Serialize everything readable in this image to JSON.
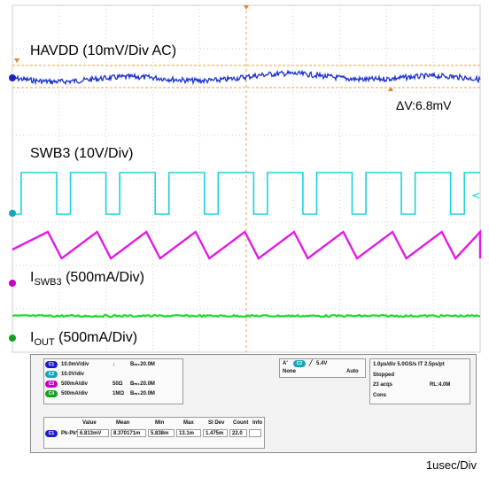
{
  "labels": {
    "havdd": "HAVDD (10mV/Div  AC)",
    "delta": "ΔV:6.8mV",
    "swb3": "SWB3 (10V/Div)",
    "iswb3_main": "I",
    "iswb3_sub": "SWB3",
    "iswb3_rest": " (500mA/Div)",
    "iout_main": "I",
    "iout_sub": "OUT",
    "iout_rest": " (500mA/Div)",
    "timebase": "1usec/Div"
  },
  "channels": [
    {
      "id": "C1",
      "scale": "10.0mV/div",
      "coupling": "↓",
      "bw": "Bₘ₊20.0M",
      "color": "#1f1fbf"
    },
    {
      "id": "C2",
      "scale": "10.0V/div",
      "coupling": "",
      "bw": "Bₘ₊20.0M",
      "color": "#17a6b8"
    },
    {
      "id": "C3",
      "scale": "500mA/div",
      "coupling": "50Ω",
      "bw": "Bₘ₊20.0M",
      "color": "#c400c4"
    },
    {
      "id": "C4",
      "scale": "500mA/div",
      "coupling": "1MΩ",
      "bw": "Bₘ₊20.0M",
      "color": "#13a01a"
    }
  ],
  "trigger": {
    "source": "C2",
    "level": "5.4V",
    "mode": "None",
    "mode2": "Auto",
    "mark": "A'"
  },
  "acq": {
    "line1": "1.0μs/div   5.0GS/s   IT   2.5ps/pt",
    "line2": "Stopped",
    "line3": "23 acqs",
    "line3b": "RL:4.0M",
    "line4": "Cons"
  },
  "meas": {
    "headers": [
      "Value",
      "Mean",
      "Min",
      "Max",
      "Sl Dev",
      "Count",
      "Info"
    ],
    "label": "Pk-Pk*",
    "channel": "C1",
    "values": [
      "6.813mV",
      "8.370171m",
      "5.838m",
      "13.1m",
      "1.475m",
      "22.0",
      ""
    ]
  },
  "chart_data": {
    "type": "line",
    "series": [
      {
        "name": "HAVDD (10mV/Div  AC)",
        "shape": "noise",
        "color": "#1a2fd0",
        "peak_to_peak_mV": 6.8
      },
      {
        "name": "SWB3 (10V/Div)",
        "shape": "square",
        "color": "#19d3dc",
        "periods": 9.5
      },
      {
        "name": "ISWB3 (500mA/Div)",
        "shape": "triangle",
        "color": "#e21ae2",
        "periods": 9.5
      },
      {
        "name": "IOUT (500mA/Div)",
        "shape": "flat",
        "color": "#1edc2a"
      }
    ],
    "x_divisions": 10,
    "y_divisions": 8,
    "grid": true
  }
}
